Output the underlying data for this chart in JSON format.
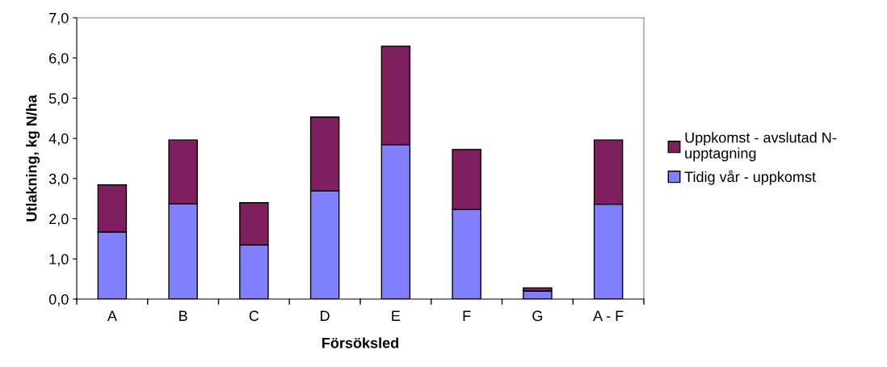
{
  "chart_data": {
    "type": "bar",
    "stacked": true,
    "xlabel": "Försöksled",
    "ylabel": "Utlakning, kg N/ha",
    "categories": [
      "A",
      "B",
      "C",
      "D",
      "E",
      "F",
      "G",
      "A - F"
    ],
    "series": [
      {
        "name": "Tidig vår - uppkomst",
        "color": "#8080ff",
        "values": [
          1.67,
          2.37,
          1.35,
          2.69,
          3.84,
          2.23,
          0.2,
          2.36
        ]
      },
      {
        "name": "Uppkomst - avslutad N-upptagning",
        "color": "#7f1f5f",
        "values": [
          1.17,
          1.59,
          1.05,
          1.84,
          2.45,
          1.49,
          0.08,
          1.6
        ]
      }
    ],
    "ylim": [
      0,
      7
    ],
    "yticks": [
      {
        "value": 0,
        "label": "0,0"
      },
      {
        "value": 1,
        "label": "1,0"
      },
      {
        "value": 2,
        "label": "2,0"
      },
      {
        "value": 3,
        "label": "3,0"
      },
      {
        "value": 4,
        "label": "4,0"
      },
      {
        "value": 5,
        "label": "5,0"
      },
      {
        "value": 6,
        "label": "6,0"
      },
      {
        "value": 7,
        "label": "7,0"
      }
    ],
    "grid": false,
    "legend": "right"
  }
}
